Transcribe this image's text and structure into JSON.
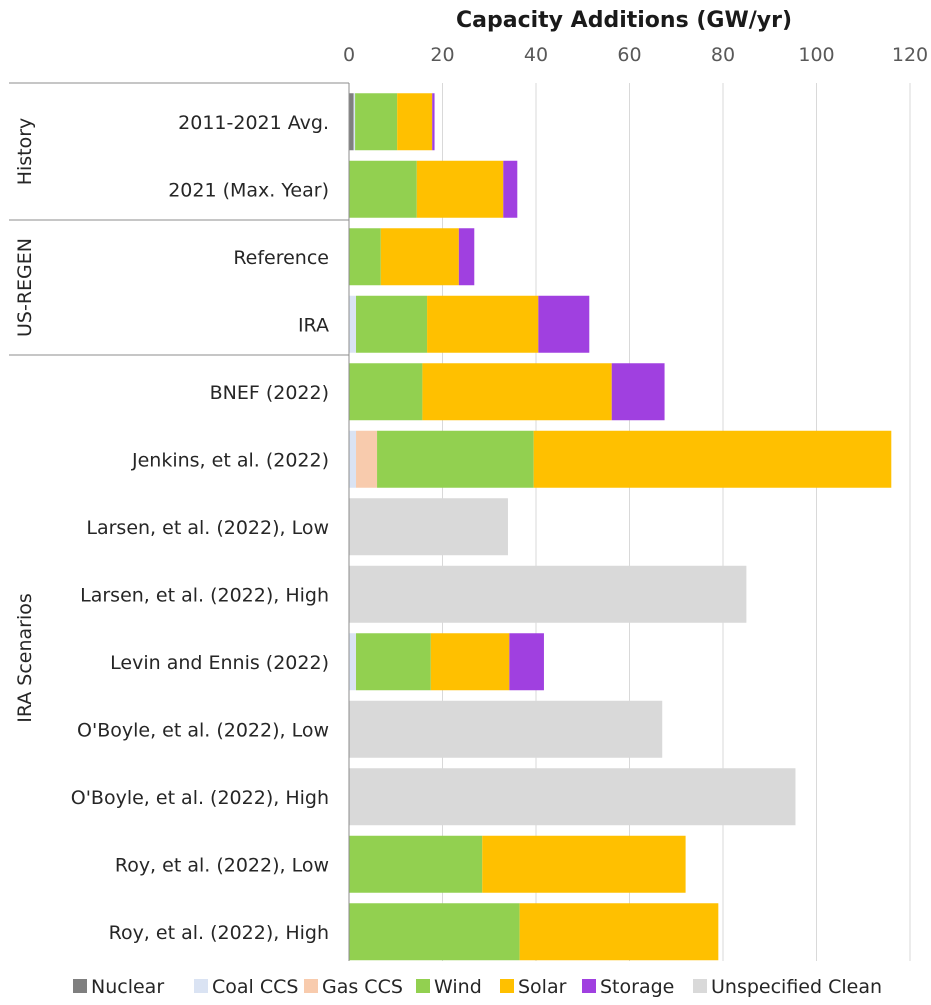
{
  "chart_data": {
    "type": "bar",
    "orientation": "horizontal",
    "stacked": true,
    "title": "Capacity Additions (GW/yr)",
    "xlim": [
      0,
      120
    ],
    "xticks": [
      0,
      20,
      40,
      60,
      80,
      100,
      120
    ],
    "grid": true,
    "legend_position": "bottom",
    "groups": [
      {
        "label": "History",
        "categories": [
          "2011-2021 Avg.",
          "2021 (Max. Year)"
        ]
      },
      {
        "label": "US-REGEN",
        "categories": [
          "Reference",
          "IRA"
        ]
      },
      {
        "label": "IRA Scenarios",
        "categories": [
          "BNEF (2022)",
          "Jenkins, et al. (2022)",
          "Larsen, et al. (2022), Low",
          "Larsen, et al. (2022), High",
          "Levin and Ennis (2022)",
          "O'Boyle, et al. (2022), Low",
          "O'Boyle, et al. (2022), High",
          "Roy, et al. (2022), Low",
          "Roy, et al. (2022), High"
        ]
      }
    ],
    "categories": [
      "2011-2021 Avg.",
      "2021 (Max. Year)",
      "Reference",
      "IRA",
      "BNEF (2022)",
      "Jenkins, et al. (2022)",
      "Larsen, et al. (2022), Low",
      "Larsen, et al. (2022), High",
      "Levin and Ennis (2022)",
      "O'Boyle, et al. (2022), Low",
      "O'Boyle, et al. (2022), High",
      "Roy, et al. (2022), Low",
      "Roy, et al. (2022), High"
    ],
    "series": [
      {
        "name": "Nuclear",
        "color": "#7f7f7f",
        "values": [
          1.0,
          0,
          0,
          0,
          0,
          0,
          0,
          0,
          0,
          0,
          0,
          0,
          0
        ]
      },
      {
        "name": "Coal CCS",
        "color": "#dae3f3",
        "values": [
          0.3,
          0,
          0,
          1.5,
          0,
          1.5,
          0,
          0,
          1.5,
          0,
          0,
          0,
          0
        ]
      },
      {
        "name": "Gas CCS",
        "color": "#f8cbad",
        "values": [
          0,
          0,
          0,
          0,
          0,
          4.5,
          0,
          0,
          0,
          0,
          0,
          0,
          0
        ]
      },
      {
        "name": "Wind",
        "color": "#92d050",
        "values": [
          9,
          14.5,
          6.8,
          15.2,
          15.7,
          33.5,
          0,
          0,
          16,
          0,
          0,
          28.5,
          36.5
        ]
      },
      {
        "name": "Solar",
        "color": "#ffc000",
        "values": [
          7.5,
          18.5,
          16.7,
          23.8,
          40.5,
          76.5,
          0,
          0,
          16.8,
          0,
          0,
          43.5,
          42.5
        ]
      },
      {
        "name": "Storage",
        "color": "#a040e0",
        "values": [
          0.5,
          3,
          3.3,
          10.9,
          11.3,
          0,
          0,
          0,
          7.4,
          0,
          0,
          0,
          0
        ]
      },
      {
        "name": "Unspecified Clean",
        "color": "#d9d9d9",
        "values": [
          0,
          0,
          0,
          0,
          0,
          0,
          34,
          85,
          0,
          67,
          95.5,
          0,
          0
        ]
      }
    ]
  }
}
